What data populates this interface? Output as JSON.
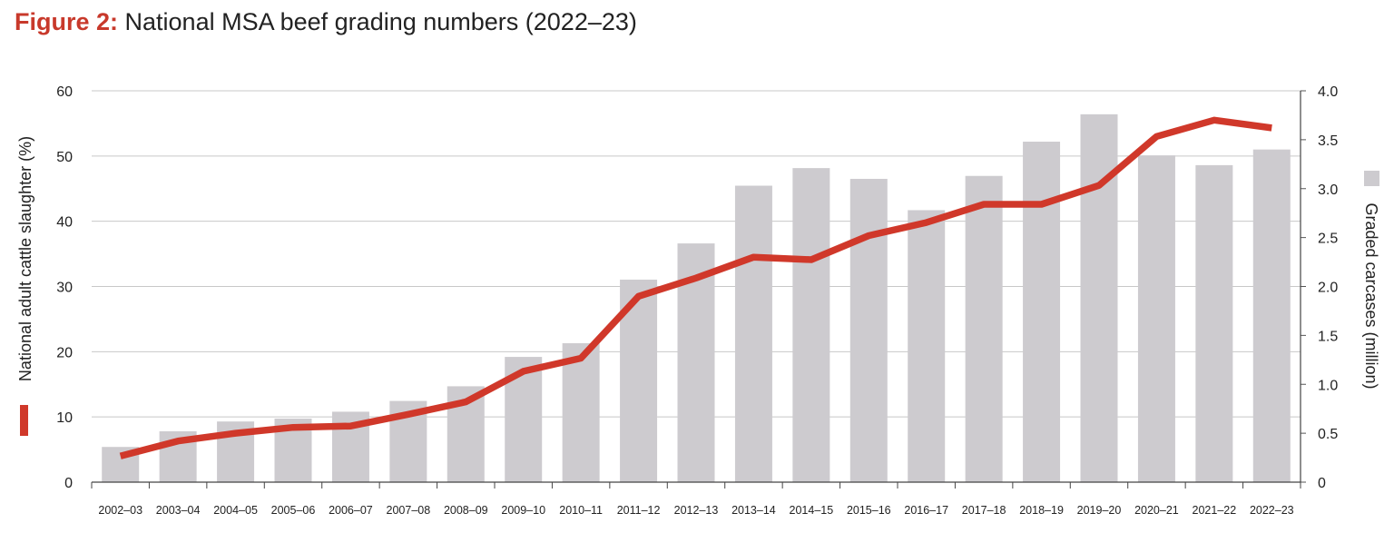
{
  "figure": {
    "label": "Figure 2:",
    "caption": "National MSA beef grading numbers (2022–23)"
  },
  "chart_data": {
    "type": "bar",
    "categories": [
      "2002–03",
      "2003–04",
      "2004–05",
      "2005–06",
      "2006–07",
      "2007–08",
      "2008–09",
      "2009–10",
      "2010–11",
      "2011–12",
      "2012–13",
      "2013–14",
      "2014–15",
      "2015–16",
      "2016–17",
      "2017–18",
      "2018–19",
      "2019–20",
      "2020–21",
      "2021–22",
      "2022–23"
    ],
    "series": [
      {
        "name": "Graded carcases (million)",
        "type": "bar",
        "axis": "right",
        "color": "#cdcbcf",
        "values": [
          0.36,
          0.52,
          0.62,
          0.65,
          0.72,
          0.83,
          0.98,
          1.28,
          1.42,
          2.07,
          2.44,
          3.03,
          3.21,
          3.1,
          2.78,
          3.13,
          3.48,
          3.76,
          3.34,
          3.24,
          3.4
        ]
      },
      {
        "name": "National adult cattle slaughter (%)",
        "type": "line",
        "axis": "left",
        "color": "#d0382a",
        "values": [
          4,
          6.3,
          7.5,
          8.4,
          8.6,
          10.4,
          12.3,
          17.0,
          19.0,
          28.5,
          31.3,
          34.5,
          34.1,
          37.8,
          39.8,
          42.6,
          42.6,
          45.5,
          53.0,
          55.5,
          54.3
        ]
      }
    ],
    "y_left": {
      "label": "National adult cattle slaughter (%)",
      "ticks": [
        "0",
        "10",
        "20",
        "30",
        "40",
        "50",
        "60"
      ],
      "ylim": [
        0,
        60
      ]
    },
    "y_right": {
      "label": "Graded carcases (million)",
      "ticks": [
        "0",
        "0.5",
        "1.0",
        "1.5",
        "2.0",
        "2.5",
        "3.0",
        "3.5",
        "4.0"
      ],
      "ylim": [
        0,
        4
      ]
    },
    "grid": "horizontal"
  }
}
